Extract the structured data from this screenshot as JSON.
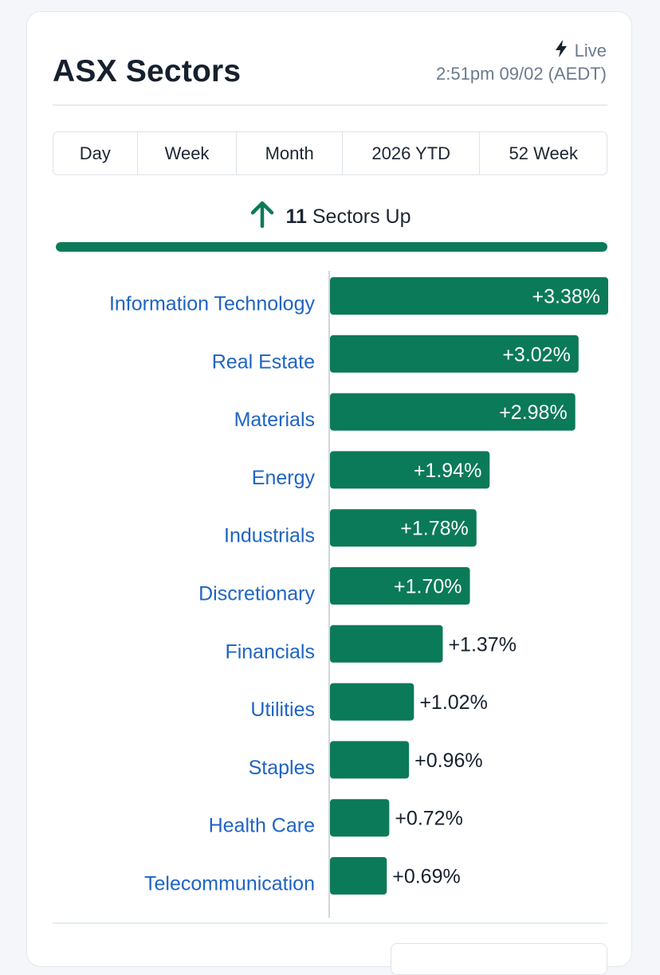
{
  "header": {
    "title": "ASX Sectors",
    "live_label": "Live",
    "timestamp": "2:51pm 09/02 (AEDT)"
  },
  "tabs": [
    {
      "label": "Day",
      "active": true
    },
    {
      "label": "Week",
      "active": false
    },
    {
      "label": "Month",
      "active": false
    },
    {
      "label": "2026 YTD",
      "active": false
    },
    {
      "label": "52 Week",
      "active": false
    }
  ],
  "summary": {
    "count": "11",
    "text": "Sectors Up",
    "icon": "arrow-up-icon",
    "up_fraction": 1.0
  },
  "colors": {
    "positive": "#0b7a58",
    "label": "#1f64c4",
    "value_outside": "#16202e",
    "value_inside": "#ffffff"
  },
  "chart_data": {
    "type": "bar",
    "orientation": "horizontal",
    "categories": [
      "Information Technology",
      "Real Estate",
      "Materials",
      "Energy",
      "Industrials",
      "Discretionary",
      "Financials",
      "Utilities",
      "Staples",
      "Health Care",
      "Telecommunication"
    ],
    "values": [
      3.38,
      3.02,
      2.98,
      1.94,
      1.78,
      1.7,
      1.37,
      1.02,
      0.96,
      0.72,
      0.69
    ],
    "labels": [
      "+3.38%",
      "+3.02%",
      "+2.98%",
      "+1.94%",
      "+1.78%",
      "+1.70%",
      "+1.37%",
      "+1.02%",
      "+0.96%",
      "+0.72%",
      "+0.69%"
    ],
    "unit": "%",
    "xlim": [
      0,
      3.38
    ],
    "grid": false,
    "legend": "none"
  }
}
